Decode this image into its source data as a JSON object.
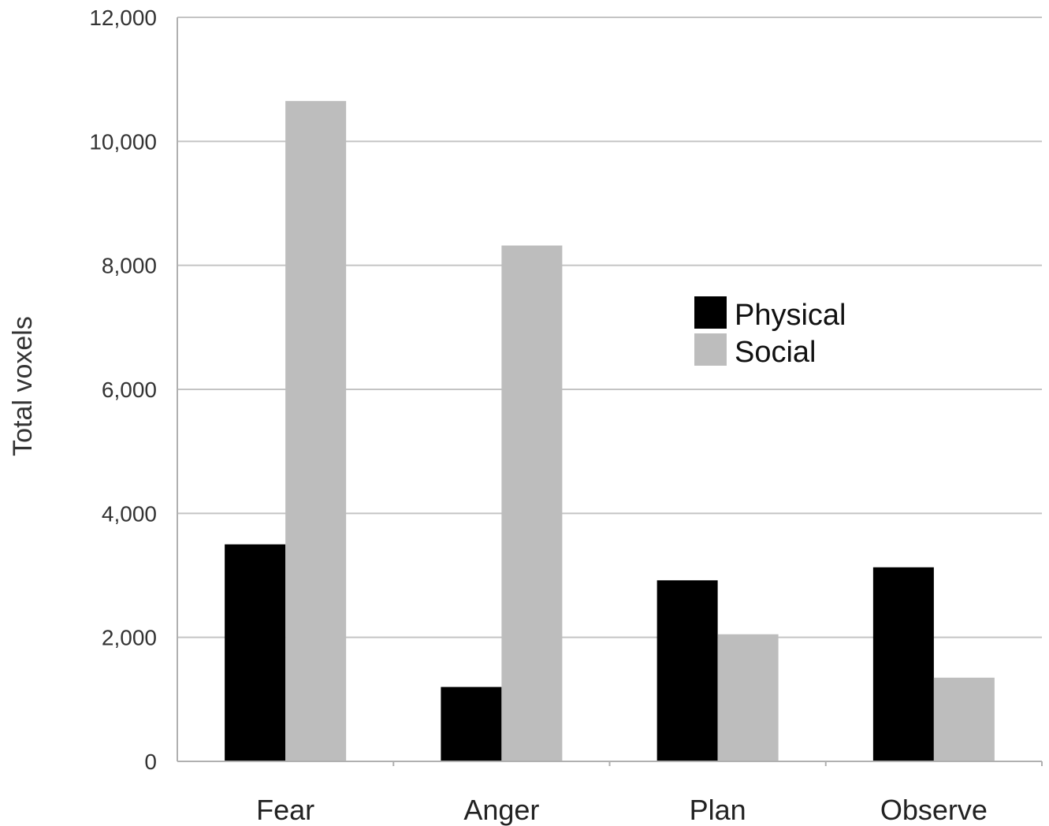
{
  "chart_data": {
    "type": "bar",
    "categories": [
      "Fear",
      "Anger",
      "Plan",
      "Observe"
    ],
    "series": [
      {
        "name": "Physical",
        "color": "#000000",
        "values": [
          3500,
          1200,
          2920,
          3130
        ]
      },
      {
        "name": "Social",
        "color": "#bdbdbd",
        "values": [
          10650,
          8320,
          2050,
          1350
        ]
      }
    ],
    "ylabel": "Total voxels",
    "xlabel": "",
    "ylim": [
      0,
      12000
    ],
    "yticks": [
      0,
      2000,
      4000,
      6000,
      8000,
      10000,
      12000
    ],
    "ytick_labels": [
      "0",
      "2,000",
      "4,000",
      "6,000",
      "8,000",
      "10,000",
      "12,000"
    ],
    "grid": true,
    "legend_position": "center-right"
  }
}
